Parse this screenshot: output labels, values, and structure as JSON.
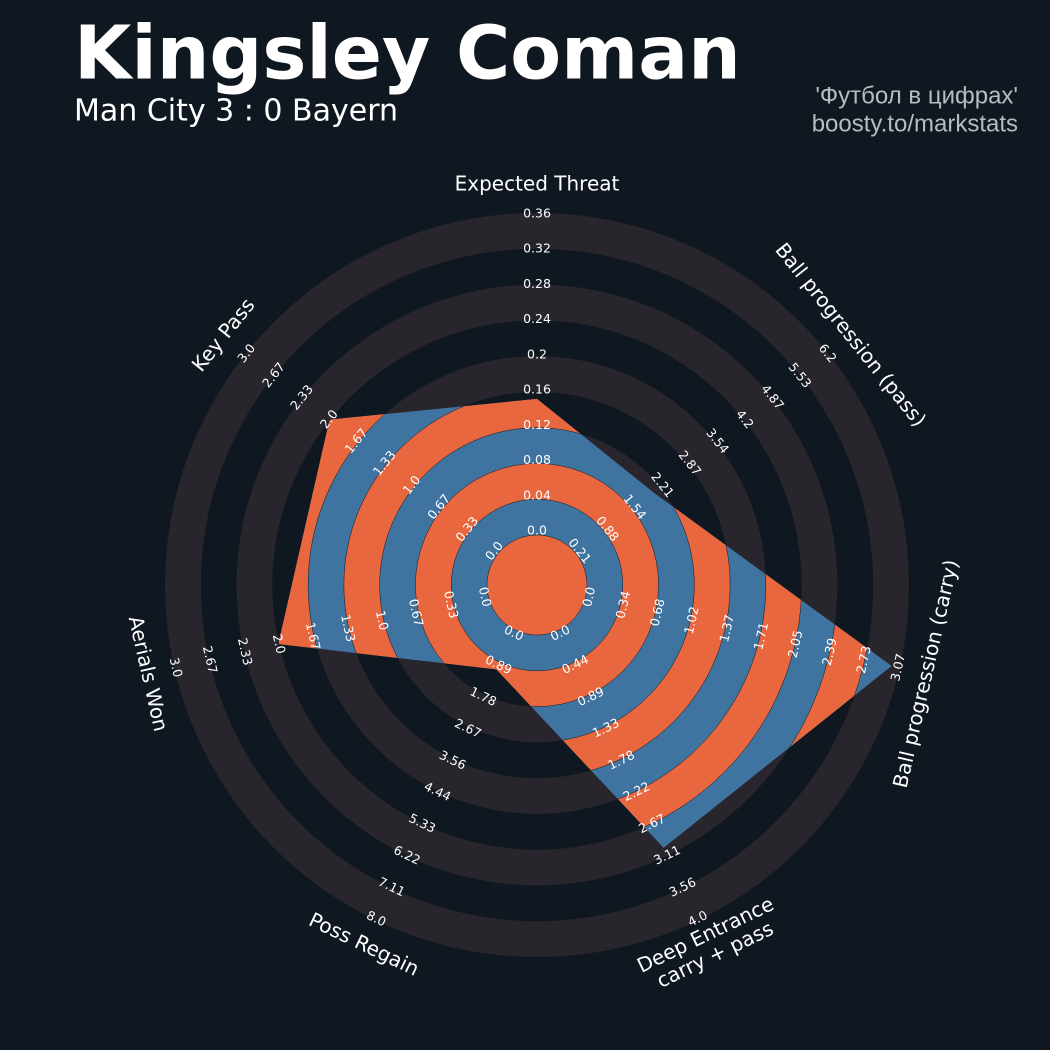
{
  "chart_data": {
    "type": "radar",
    "title": "Kingsley Coman",
    "subtitle": "Man City 3 : 0 Bayern",
    "credit": [
      "'Футбол в цифрах'",
      "boosty.to/markstats"
    ],
    "color": "#3f73a0",
    "ring_color": "#e8673f",
    "background_ring_color": "#28252c",
    "params": [
      {
        "name": "Expected Threat",
        "value": 0.15,
        "lim": [
          0,
          0.36
        ],
        "ticks": [
          {
            "value": 0,
            "label": "0.0"
          },
          0.04,
          0.08,
          0.12,
          0.16,
          0.2,
          0.24,
          0.28,
          0.32,
          0.36
        ]
      },
      {
        "name": "Ball progression (pass)",
        "value": 2.0,
        "lim": [
          0.21,
          6.2
        ],
        "ticks": [
          0.21,
          0.88,
          1.54,
          2.21,
          2.87,
          3.54,
          4.2,
          4.87,
          5.53,
          6.2
        ]
      },
      {
        "name": "Ball progression (carry)",
        "value": 3.0,
        "lim": [
          0,
          3.07
        ],
        "ticks": [
          {
            "value": 0,
            "label": "0.0"
          },
          0.34,
          0.68,
          1.02,
          1.37,
          1.71,
          2.05,
          2.39,
          2.73,
          3.07
        ]
      },
      {
        "name": "Deep Entrance\ncarry + pass",
        "value": 3.0,
        "lim": [
          0,
          4
        ],
        "ticks": [
          {
            "value": 0,
            "label": "0.0"
          },
          0.44,
          0.89,
          1.33,
          1.78,
          2.22,
          2.67,
          3.11,
          3.56,
          {
            "value": 4,
            "label": "4.0"
          }
        ]
      },
      {
        "name": "Poss Regain",
        "value": 1.0,
        "lim": [
          0,
          8
        ],
        "ticks": [
          {
            "value": 0,
            "label": "0.0"
          },
          0.89,
          1.78,
          2.67,
          3.56,
          4.44,
          5.33,
          6.22,
          7.11,
          {
            "value": 8,
            "label": "8.0"
          }
        ]
      },
      {
        "name": "Aerials Won",
        "value": 2.0,
        "lim": [
          0,
          3
        ],
        "ticks": [
          {
            "value": 0,
            "label": "0.0"
          },
          0.33,
          0.67,
          {
            "value": 1,
            "label": "1.0"
          },
          1.33,
          1.67,
          {
            "value": 2,
            "label": "2.0"
          },
          2.33,
          2.67,
          {
            "value": 3,
            "label": "3.0"
          }
        ]
      },
      {
        "name": "Key Pass",
        "value": 2.0,
        "lim": [
          0,
          3
        ],
        "ticks": [
          {
            "value": 0,
            "label": "0.0"
          },
          0.33,
          0.67,
          {
            "value": 1,
            "label": "1.0"
          },
          1.33,
          1.67,
          {
            "value": 2,
            "label": "2.0"
          },
          2.33,
          2.67,
          {
            "value": 3,
            "label": "3.0"
          }
        ]
      }
    ]
  }
}
